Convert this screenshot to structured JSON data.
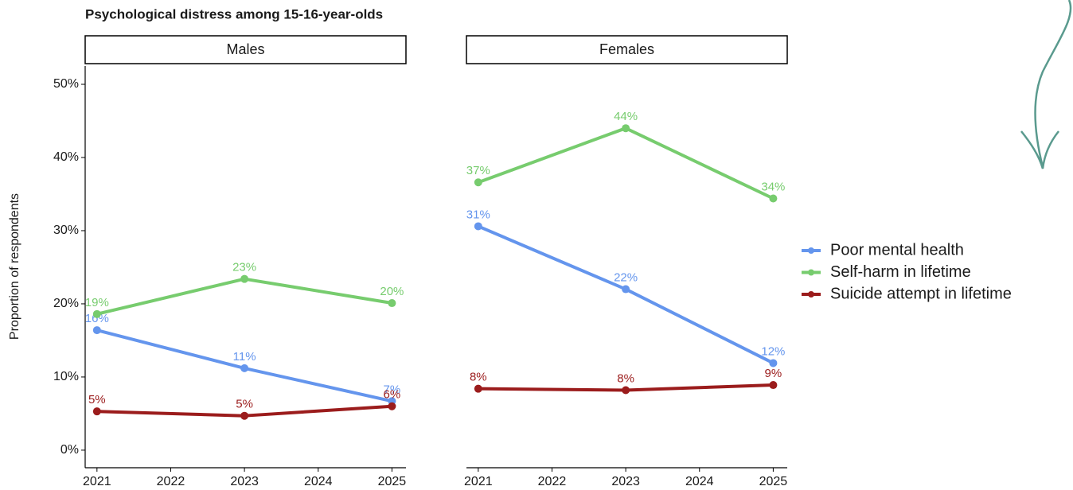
{
  "chart_data": [
    {
      "type": "line",
      "title": "Psychological distress among 15-16-year-olds",
      "ylabel": "Proportion of respondents",
      "panel": "Males",
      "x": [
        2021,
        2023,
        2025
      ],
      "xlim": [
        2020.84,
        2025.19
      ],
      "xticks": [
        2021,
        2022,
        2023,
        2024,
        2025
      ],
      "ylim": [
        -2.4,
        52.5
      ],
      "yticks": [
        {
          "value": 0,
          "label": "0%"
        },
        {
          "value": 10,
          "label": "10%"
        },
        {
          "value": 20,
          "label": "20%"
        },
        {
          "value": 30,
          "label": "30%"
        },
        {
          "value": 40,
          "label": "40%"
        },
        {
          "value": 50,
          "label": "50%"
        }
      ],
      "legend": "right",
      "series": [
        {
          "name": "Poor mental health",
          "color": "#6495ed",
          "values": [
            16.4,
            11.2,
            6.7
          ],
          "value_labels": [
            "16%",
            "11%",
            "7%"
          ]
        },
        {
          "name": "Self-harm in lifetime",
          "color": "#77cc6e",
          "values": [
            18.6,
            23.4,
            20.1
          ],
          "value_labels": [
            "19%",
            "23%",
            "20%"
          ]
        },
        {
          "name": "Suicide attempt in lifetime",
          "color": "#9b1c1c",
          "values": [
            5.3,
            4.7,
            6.0
          ],
          "value_labels": [
            "5%",
            "5%",
            "6%"
          ]
        }
      ]
    },
    {
      "type": "line",
      "panel": "Females",
      "x": [
        2021,
        2023,
        2025
      ],
      "xlim": [
        2020.84,
        2025.19
      ],
      "xticks": [
        2021,
        2022,
        2023,
        2024,
        2025
      ],
      "ylim": [
        -2.4,
        52.5
      ],
      "series": [
        {
          "color": "#6495ed",
          "values": [
            30.6,
            22.0,
            11.9
          ],
          "value_labels": [
            "31%",
            "22%",
            "12%"
          ]
        },
        {
          "color": "#77cc6e",
          "values": [
            36.6,
            44.0,
            34.4
          ],
          "value_labels": [
            "37%",
            "44%",
            "34%"
          ]
        },
        {
          "color": "#9b1c1c",
          "values": [
            8.4,
            8.2,
            8.9
          ],
          "value_labels": [
            "8%",
            "8%",
            "9%"
          ]
        }
      ]
    }
  ]
}
